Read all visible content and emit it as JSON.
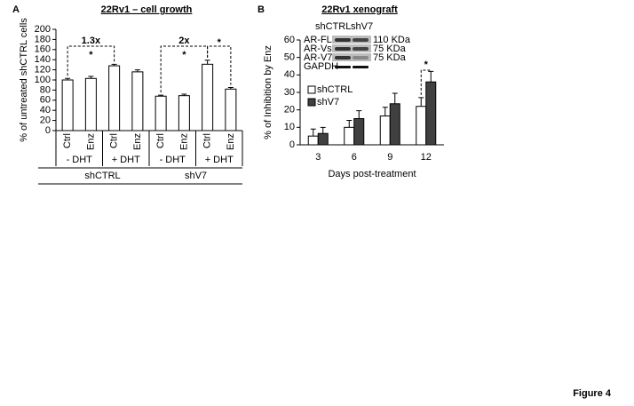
{
  "chart_data": [
    {
      "type": "bar",
      "panel": "A",
      "title": "22Rv1 – cell growth",
      "y_label": "% of untreated shCTRL cells",
      "categories": [
        "Ctrl",
        "Enz",
        "Ctrl",
        "Enz",
        "Ctrl",
        "Enz",
        "Ctrl",
        "Enz"
      ],
      "values": [
        100,
        103,
        128,
        116,
        68,
        69,
        131,
        82
      ],
      "errors": [
        3,
        4,
        3,
        4,
        2,
        3,
        8,
        3
      ],
      "color": "#ffffff",
      "groups": [
        "- DHT",
        "+ DHT",
        "- DHT",
        "+ DHT"
      ],
      "supergroups": [
        "shCTRL",
        "shV7"
      ],
      "brackets": [
        {
          "label": "1.3x",
          "star": "*"
        },
        {
          "label": "2x",
          "star": "*"
        },
        {
          "star": "*"
        }
      ],
      "ylim": [
        0,
        200
      ],
      "yticks": [
        0,
        20,
        40,
        60,
        80,
        100,
        120,
        140,
        160,
        180,
        200
      ]
    },
    {
      "type": "grouped-bar",
      "panel": "B",
      "title": "22Rv1 xenograft",
      "y_label": "% of Inhibition by Enz",
      "x_label": "Days post-treatment",
      "categories": [
        "3",
        "6",
        "9",
        "12"
      ],
      "series": [
        {
          "name": "shCTRL",
          "color": "#ffffff",
          "values": [
            5,
            10,
            16.5,
            22
          ],
          "errors": [
            4,
            4,
            5,
            5
          ]
        },
        {
          "name": "shV7",
          "color": "#404040",
          "values": [
            6.5,
            15,
            23.5,
            36
          ],
          "errors": [
            3.5,
            4.5,
            6,
            6
          ]
        }
      ],
      "brackets": [
        {
          "star": "*"
        }
      ],
      "inset": {
        "lanes": [
          "shCTRL",
          "shV7"
        ],
        "bands": [
          {
            "name": "AR-FL",
            "size": "110 KDa"
          },
          {
            "name": "AR-Vs",
            "size": "75 KDa"
          },
          {
            "name": "AR-V7",
            "size": "75 KDa"
          },
          {
            "name": "GAPDH"
          }
        ]
      },
      "ylim": [
        0,
        60
      ],
      "yticks": [
        0,
        10,
        20,
        30,
        40,
        50,
        60
      ]
    }
  ],
  "figure_label": "Figure 4"
}
